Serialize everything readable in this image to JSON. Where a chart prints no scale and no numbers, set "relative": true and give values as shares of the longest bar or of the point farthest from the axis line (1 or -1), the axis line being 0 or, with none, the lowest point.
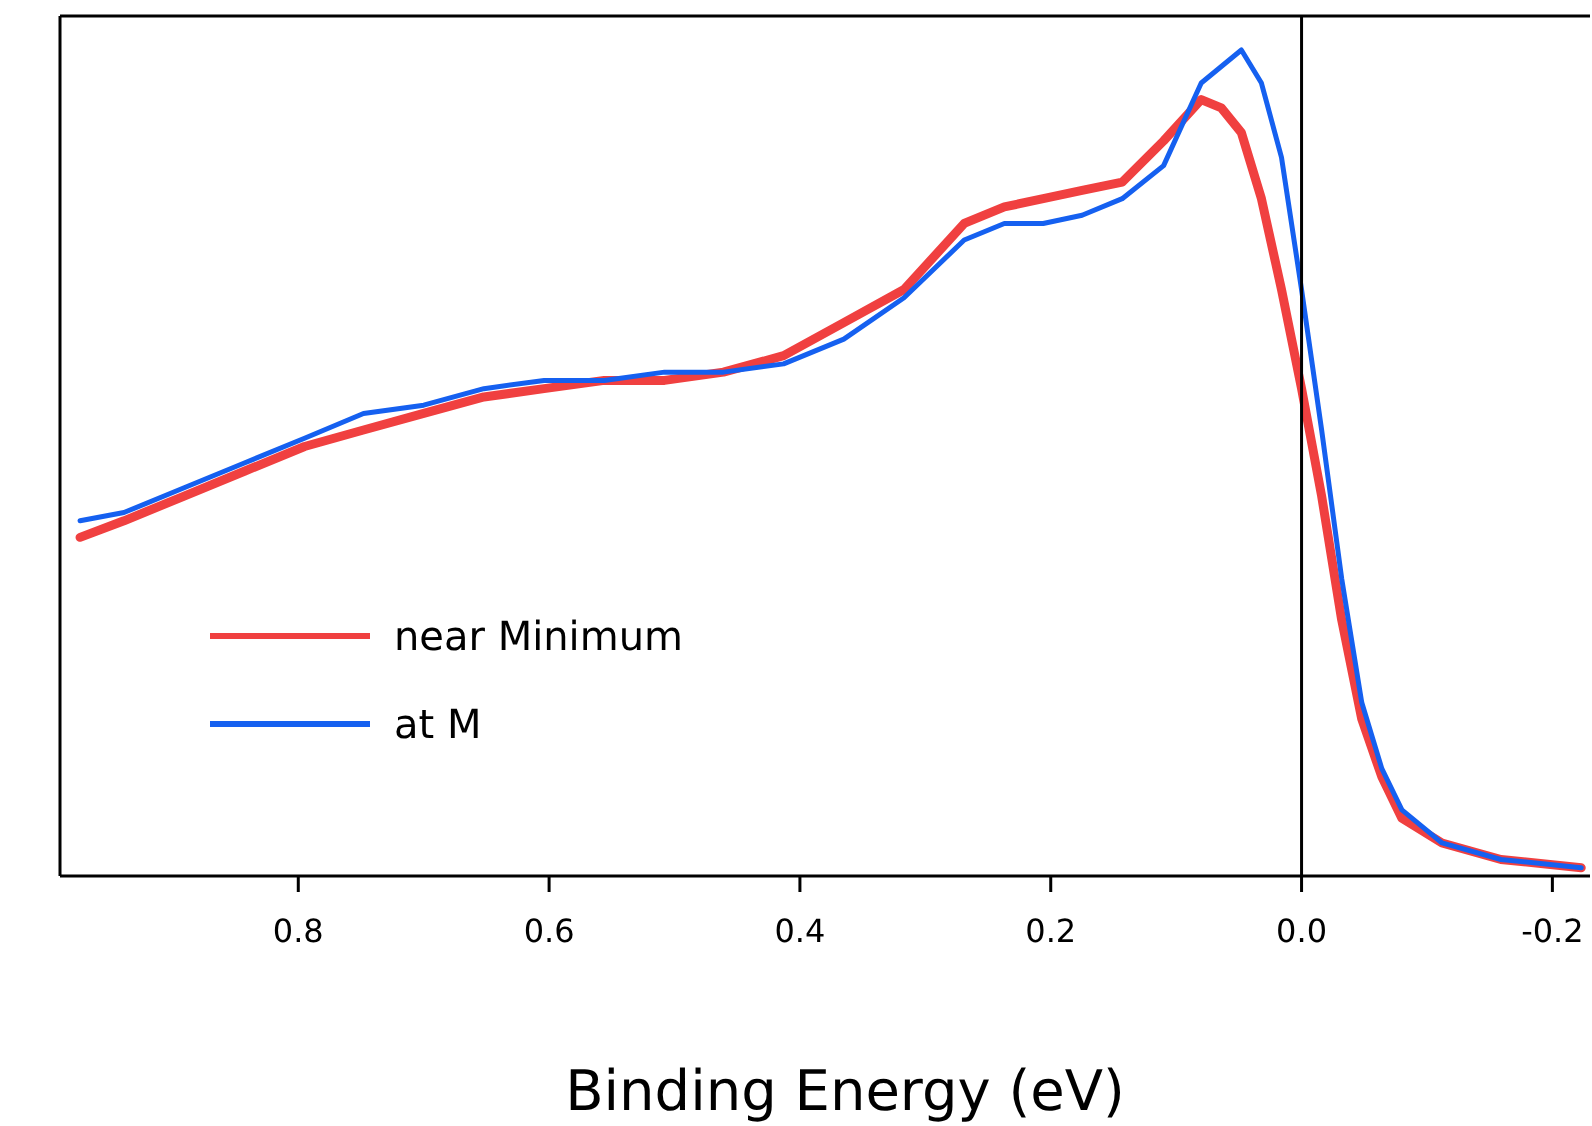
{
  "chart_data": {
    "type": "line",
    "xlabel": "Binding Energy (eV)",
    "relative": true,
    "tick_labels": "x",
    "xlim": [
      0.99,
      -0.23
    ],
    "xticks": [
      0.8,
      0.6,
      0.4,
      0.2,
      {
        "value": 0,
        "label": "0.0"
      },
      -0.2
    ],
    "ref_lines": [
      {
        "axis": "x",
        "value": 0,
        "color": "#000000"
      }
    ],
    "legend": "bottom left",
    "grid": false,
    "marker": "none",
    "line_style": "solid",
    "series": [
      {
        "name": "near Minimum",
        "color": "#f04040",
        "x": [
          0.974,
          0.939,
          0.891,
          0.843,
          0.795,
          0.748,
          0.7,
          0.652,
          0.604,
          0.556,
          0.508,
          0.461,
          0.413,
          0.365,
          0.317,
          0.269,
          0.237,
          0.206,
          0.175,
          0.143,
          0.11,
          0.08,
          0.064,
          0.048,
          0.032,
          0.016,
          0.0,
          -0.016,
          -0.032,
          -0.048,
          -0.064,
          -0.08,
          -0.112,
          -0.159,
          -0.223
        ],
        "values": [
          0.41,
          0.43,
          0.46,
          0.49,
          0.52,
          0.54,
          0.56,
          0.58,
          0.59,
          0.6,
          0.6,
          0.61,
          0.63,
          0.67,
          0.71,
          0.79,
          0.81,
          0.82,
          0.83,
          0.84,
          0.89,
          0.94,
          0.93,
          0.9,
          0.82,
          0.71,
          0.59,
          0.46,
          0.31,
          0.19,
          0.12,
          0.07,
          0.04,
          0.02,
          0.01
        ]
      },
      {
        "name": "at M",
        "color": "#1560f0",
        "x": [
          0.974,
          0.939,
          0.891,
          0.843,
          0.795,
          0.748,
          0.7,
          0.652,
          0.604,
          0.556,
          0.508,
          0.461,
          0.413,
          0.365,
          0.317,
          0.269,
          0.237,
          0.206,
          0.175,
          0.143,
          0.11,
          0.08,
          0.064,
          0.048,
          0.032,
          0.016,
          0.0,
          -0.016,
          -0.032,
          -0.048,
          -0.064,
          -0.08,
          -0.112,
          -0.159,
          -0.223
        ],
        "values": [
          0.43,
          0.44,
          0.47,
          0.5,
          0.53,
          0.56,
          0.57,
          0.59,
          0.6,
          0.6,
          0.61,
          0.61,
          0.62,
          0.65,
          0.7,
          0.77,
          0.79,
          0.79,
          0.8,
          0.82,
          0.86,
          0.96,
          0.98,
          1.0,
          0.96,
          0.87,
          0.71,
          0.54,
          0.36,
          0.21,
          0.13,
          0.08,
          0.04,
          0.02,
          0.01
        ]
      }
    ]
  }
}
